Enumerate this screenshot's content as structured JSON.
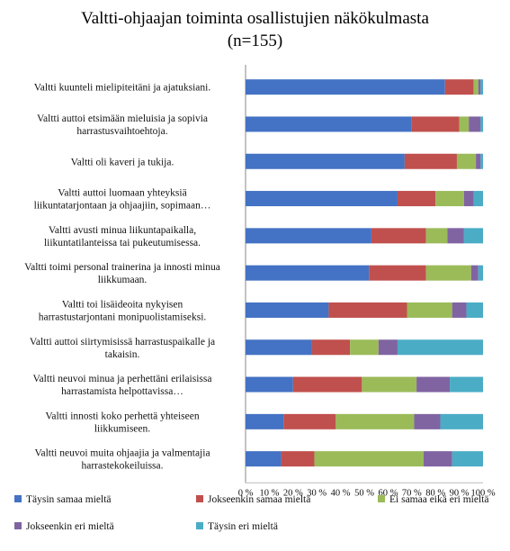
{
  "chart_data": {
    "type": "bar",
    "orientation": "horizontal",
    "stacked": "percent",
    "title": "Valtti-ohjaajan toiminta osallistujien näkökulmasta",
    "subtitle": "(n=155)",
    "xlim": [
      0,
      100
    ],
    "x_ticks": [
      "0 %",
      "10 %",
      "20 %",
      "30 %",
      "40 %",
      "50 %",
      "60 %",
      "70 %",
      "80 %",
      "90 %",
      "100 %"
    ],
    "categories": [
      [
        "Valtti kuunteli mielipiteitäni ja ajatuksiani."
      ],
      [
        "Valtti auttoi etsimään mieluisia ja sopivia",
        "harrastusvaihtoehtoja."
      ],
      [
        "Valtti oli kaveri ja tukija."
      ],
      [
        "Valtti auttoi luomaan yhteyksiä",
        "liikuntatarjontaan ja ohjaajiin, sopimaan…"
      ],
      [
        "Valtti avusti minua liikuntapaikalla,",
        "liikuntatilanteissa tai pukeutumisessa."
      ],
      [
        "Valtti toimi personal trainerina ja innosti minua",
        "liikkumaan."
      ],
      [
        "Valtti toi lisäideoita nykyisen",
        "harrastustarjontani monipuolistamiseksi."
      ],
      [
        "Valtti auttoi siirtymisissä harrastuspaikalle ja",
        "takaisin."
      ],
      [
        "Valtti neuvoi minua ja perhettäni erilaisissa",
        "harrastamista helpottavissa…"
      ],
      [
        "Valtti innosti koko perhettä yhteiseen",
        "liikkumiseen."
      ],
      [
        "Valtti neuvoi muita ohjaajia ja valmentajia",
        "harrastekokeiluissa."
      ]
    ],
    "series": [
      {
        "name": "Täysin samaa mieltä",
        "color": "#4472C4",
        "values": [
          84,
          70,
          67,
          64,
          53,
          52,
          35,
          28,
          20,
          16,
          15
        ]
      },
      {
        "name": "Jokseenkin samaa mieltä",
        "color": "#C0504D",
        "values": [
          12,
          20,
          22,
          16,
          23,
          24,
          33,
          16,
          29,
          22,
          14
        ]
      },
      {
        "name": "Ei samaa eikä eri mieltä",
        "color": "#9BBB59",
        "values": [
          2,
          4,
          8,
          12,
          9,
          19,
          19,
          12,
          23,
          33,
          46
        ]
      },
      {
        "name": "Jokseenkin eri mieltä",
        "color": "#8064A2",
        "values": [
          1,
          5,
          2,
          4,
          7,
          3,
          6,
          8,
          14,
          11,
          12
        ]
      },
      {
        "name": "Täysin eri mieltä",
        "color": "#4BACC6",
        "values": [
          1,
          1,
          1,
          4,
          8,
          2,
          7,
          36,
          14,
          18,
          13
        ]
      }
    ],
    "legend_position": "bottom",
    "grid": false
  }
}
